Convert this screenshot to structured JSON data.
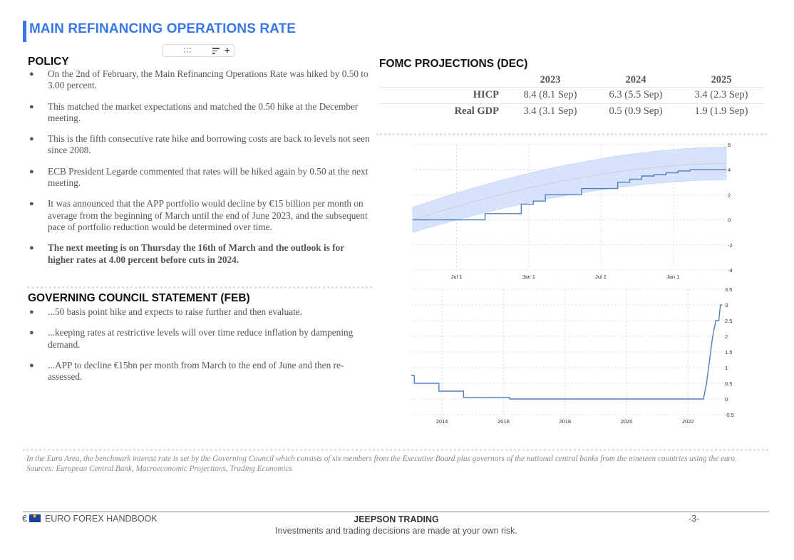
{
  "header": {
    "title": "MAIN REFINANCING OPERATIONS RATE"
  },
  "policy": {
    "heading": "POLICY",
    "bullets": [
      "On the 2nd of February, the Main Refinancing Operations Rate was hiked by 0.50 to 3.00 percent.",
      "This matched the market expectations and matched the 0.50 hike at the December meeting.",
      "This is the fifth consecutive rate hike and borrowing costs are back to levels not seen since 2008.",
      "ECB President Legarde commented that rates will be hiked again by 0.50 at the next meeting.",
      "It was announced that the APP portfolio would decline by €15 billion per month on average from the beginning of March until the end of June 2023, and the subsequent pace of portfolio reduction would be determined over time.",
      "The next meeting is on Thursday the 16th of March and the outlook is for higher rates at 4.00 percent before cuts in 2024."
    ]
  },
  "statement": {
    "heading": "GOVERNING COUNCIL STATEMENT (FEB)",
    "bullets": [
      "...50 basis point hike and expects to raise further and then evaluate.",
      "...keeping rates at restrictive levels will over time reduce inflation by dampening demand.",
      "...APP to decline €15bn per month from March to the end of June and then re-assessed."
    ]
  },
  "projections": {
    "heading": "FOMC PROJECTIONS (DEC)",
    "years": [
      "2023",
      "2024",
      "2025"
    ],
    "rows": [
      {
        "label": "HICP",
        "values": [
          "8.4 (8.1 Sep)",
          "6.3 (5.5 Sep)",
          "3.4 (2.3 Sep)"
        ]
      },
      {
        "label": "Real GDP",
        "values": [
          "3.4 (3.1 Sep)",
          "0.5 (0.9 Sep)",
          "1.9 (1.9 Sep)"
        ]
      }
    ]
  },
  "chart_data": [
    {
      "type": "line",
      "title": "",
      "description_none": "",
      "x_ticks": [
        "Jul 1",
        "Jan 1",
        "Jul 1",
        "Jan 1"
      ],
      "y_ticks": [
        "6",
        "4",
        "2",
        "0",
        "-2",
        "-4"
      ],
      "ylim": [
        -4,
        6
      ],
      "series": [
        {
          "name": "rate",
          "x": [
            0,
            1,
            2,
            3,
            4,
            5,
            6,
            7,
            8,
            9,
            10,
            11,
            12,
            13,
            14,
            15,
            16,
            17,
            18,
            19,
            20,
            21,
            22,
            23,
            24,
            25,
            26
          ],
          "values": [
            0,
            0,
            0,
            0,
            0,
            0,
            0.5,
            0.5,
            0.5,
            1.25,
            1.5,
            2,
            2,
            2,
            2.5,
            2.5,
            2.5,
            3,
            3.25,
            3.5,
            3.6,
            3.75,
            3.9,
            4,
            4,
            4,
            4
          ]
        },
        {
          "name": "forecast-band-upper",
          "x": [
            0,
            26
          ],
          "values": [
            1,
            5.8
          ]
        },
        {
          "name": "forecast-band-lower",
          "x": [
            0,
            26
          ],
          "values": [
            -1,
            3.2
          ]
        }
      ]
    },
    {
      "type": "line",
      "title": "",
      "x_ticks": [
        "2014",
        "2016",
        "2018",
        "2020",
        "2022"
      ],
      "y_ticks": [
        "3.5",
        "3",
        "2.5",
        "2",
        "1.5",
        "1",
        "0.5",
        "0",
        "-0.5"
      ],
      "ylim": [
        -0.5,
        3.5
      ],
      "series": [
        {
          "name": "main-refinancing-rate",
          "x": [
            2013.0,
            2013.1,
            2013.4,
            2013.9,
            2014.4,
            2014.7,
            2016.2,
            2022.5,
            2022.6,
            2022.7,
            2022.8,
            2022.9,
            2023.0,
            2023.05,
            2023.1
          ],
          "values": [
            0.75,
            0.5,
            0.5,
            0.25,
            0.25,
            0.05,
            0.0,
            0.0,
            0.5,
            1.25,
            2.0,
            2.5,
            2.5,
            3.0,
            3.0
          ]
        }
      ]
    }
  ],
  "footnote": {
    "line1": "In the Euro Area, the benchmark interest rate is set by the  Governing Council which consists of six members from the Executive Board plus governors of the national central banks from the nineteen countries using the euro.",
    "line2": "Sources: European Central Bank, Macroeconomic Projections, Trading Economics"
  },
  "footer": {
    "currency": "€",
    "handbook": "EURO FOREX HANDBOOK",
    "brand": "JEEPSON TRADING",
    "disclaimer": "Investments and trading decisions are made at your own risk.",
    "page": "-3-"
  },
  "colors": {
    "accent": "#3a78e7",
    "line": "#4f7fbf",
    "band": "#d6e3fb"
  }
}
